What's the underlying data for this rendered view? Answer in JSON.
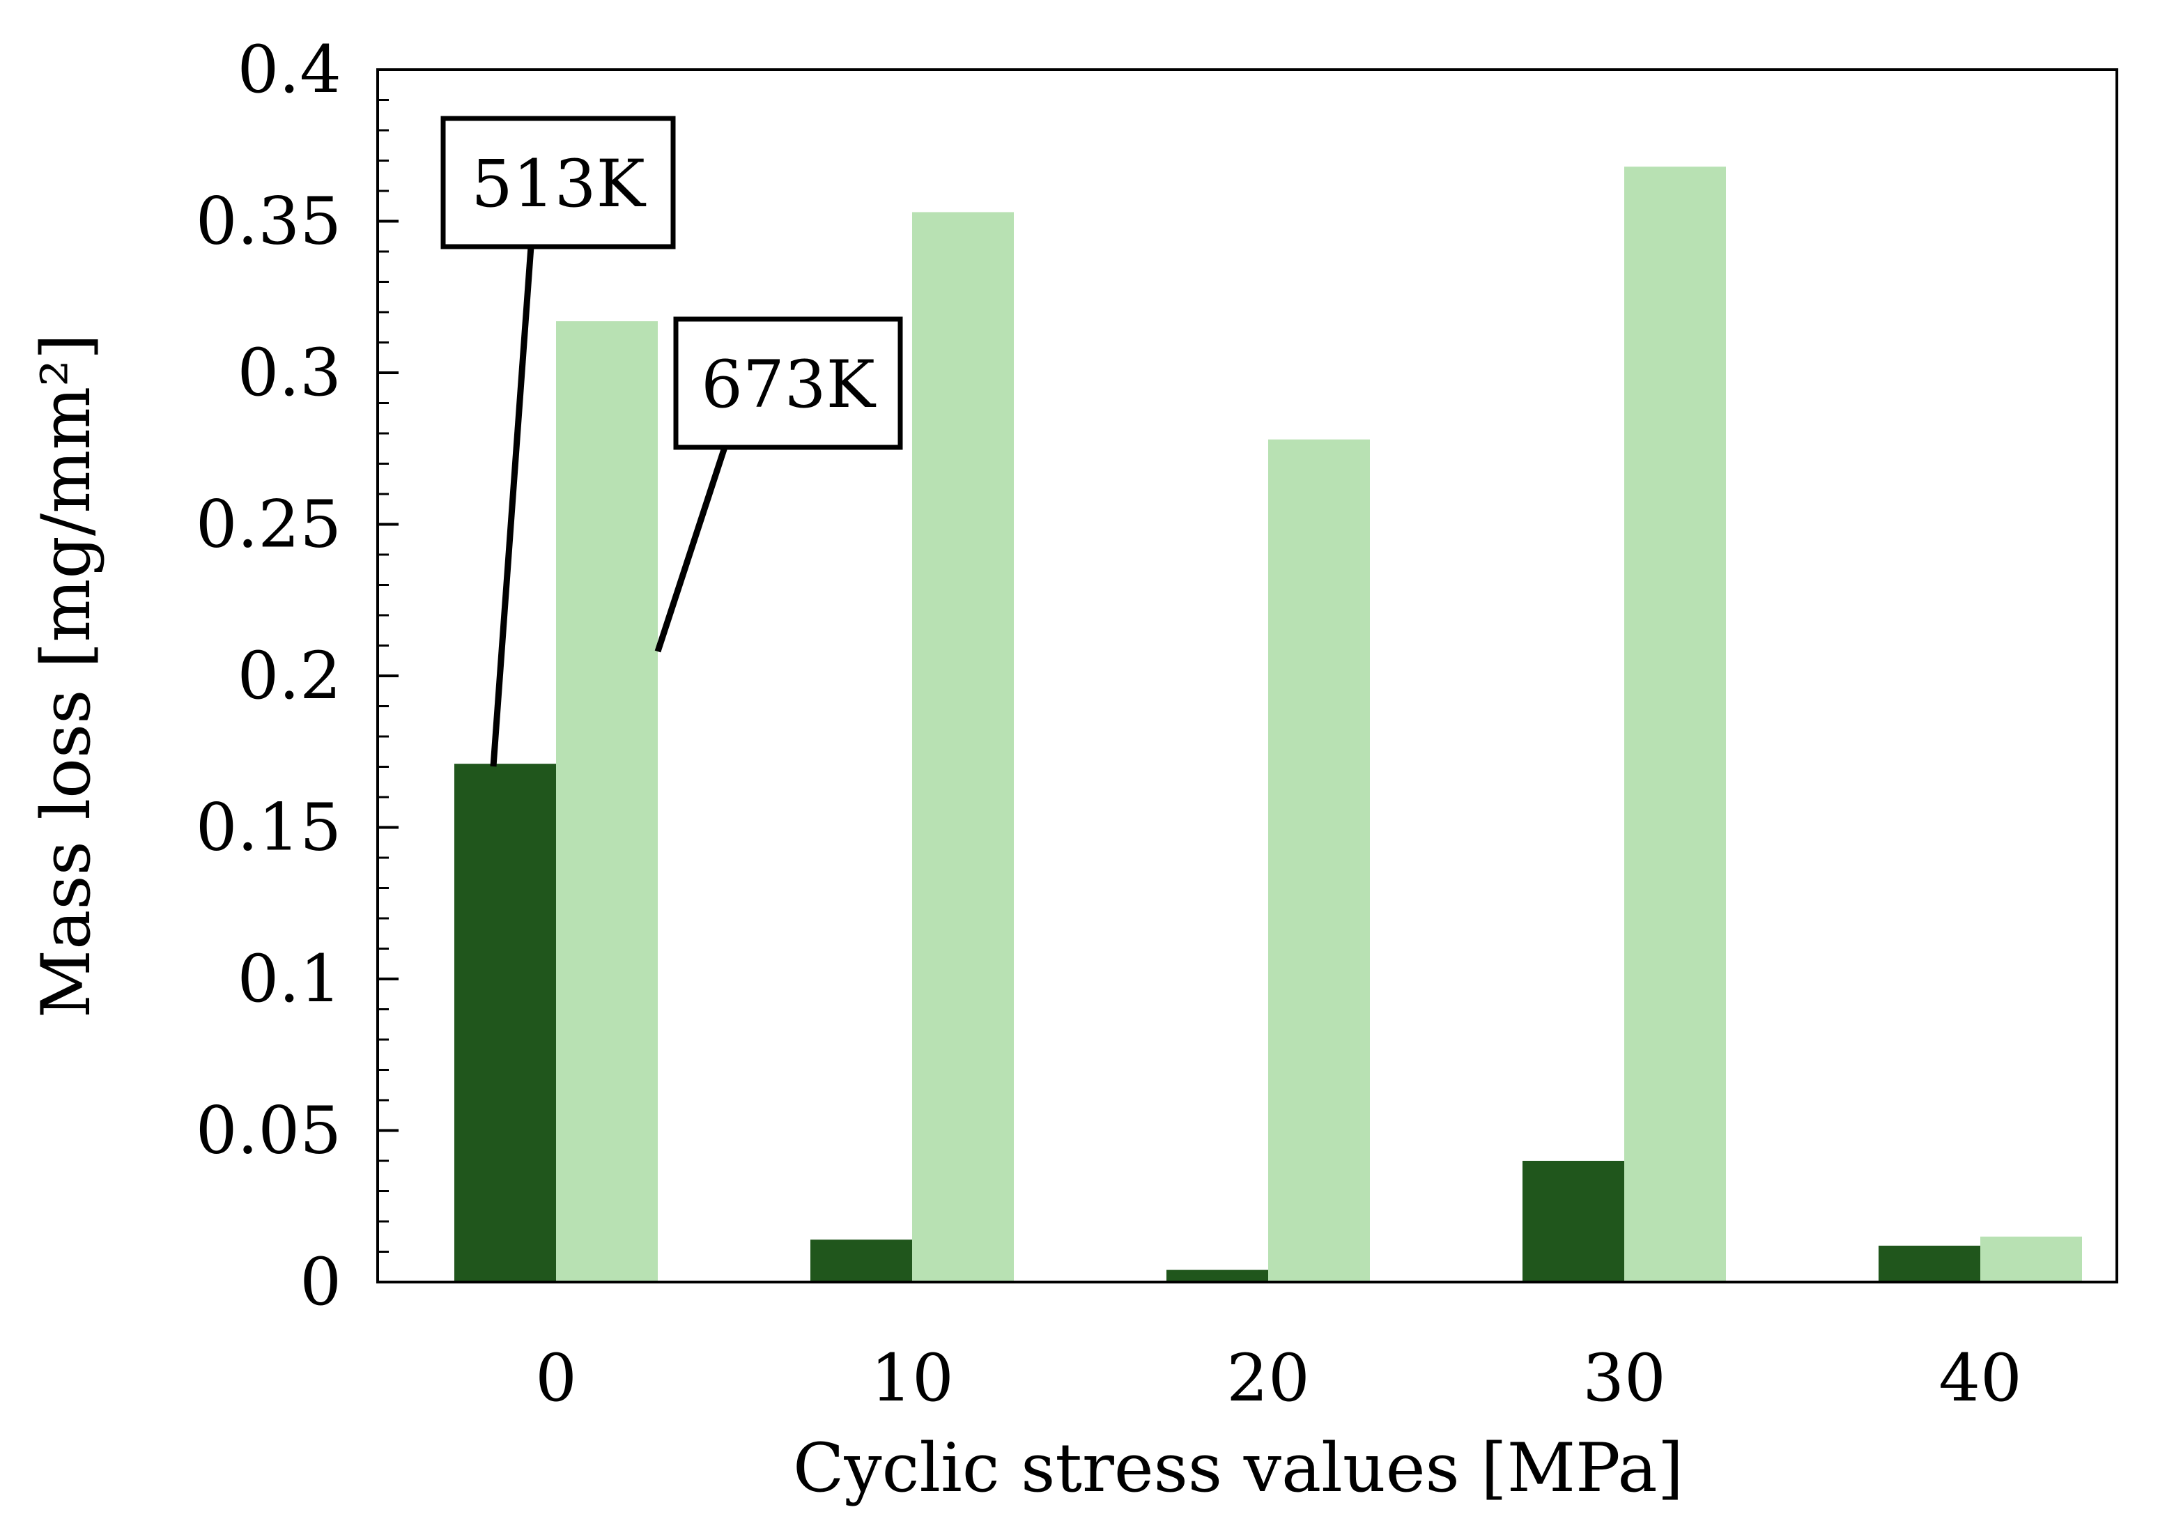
{
  "chart_data": {
    "type": "bar",
    "title": "",
    "xlabel": "Cyclic stress values [MPa]",
    "ylabel": "Mass loss [mg/mm²]",
    "categories": [
      "0",
      "10",
      "20",
      "30",
      "40"
    ],
    "ylim": [
      0,
      0.4
    ],
    "yticks": [
      "0",
      "0.05",
      "0.1",
      "0.15",
      "0.2",
      "0.25",
      "0.3",
      "0.35",
      "0.4"
    ],
    "grid": false,
    "legend": "none",
    "series": [
      {
        "name": "513K",
        "color": "#20561c",
        "values": [
          0.171,
          0.014,
          0.004,
          0.04,
          0.012
        ]
      },
      {
        "name": "673K",
        "color": "#b8e1b3",
        "values": [
          0.317,
          0.353,
          0.278,
          0.368,
          0.015
        ]
      }
    ],
    "annotations": [
      {
        "text": "513K",
        "series": 0,
        "category": 0
      },
      {
        "text": "673K",
        "series": 1,
        "category": 0
      }
    ]
  }
}
